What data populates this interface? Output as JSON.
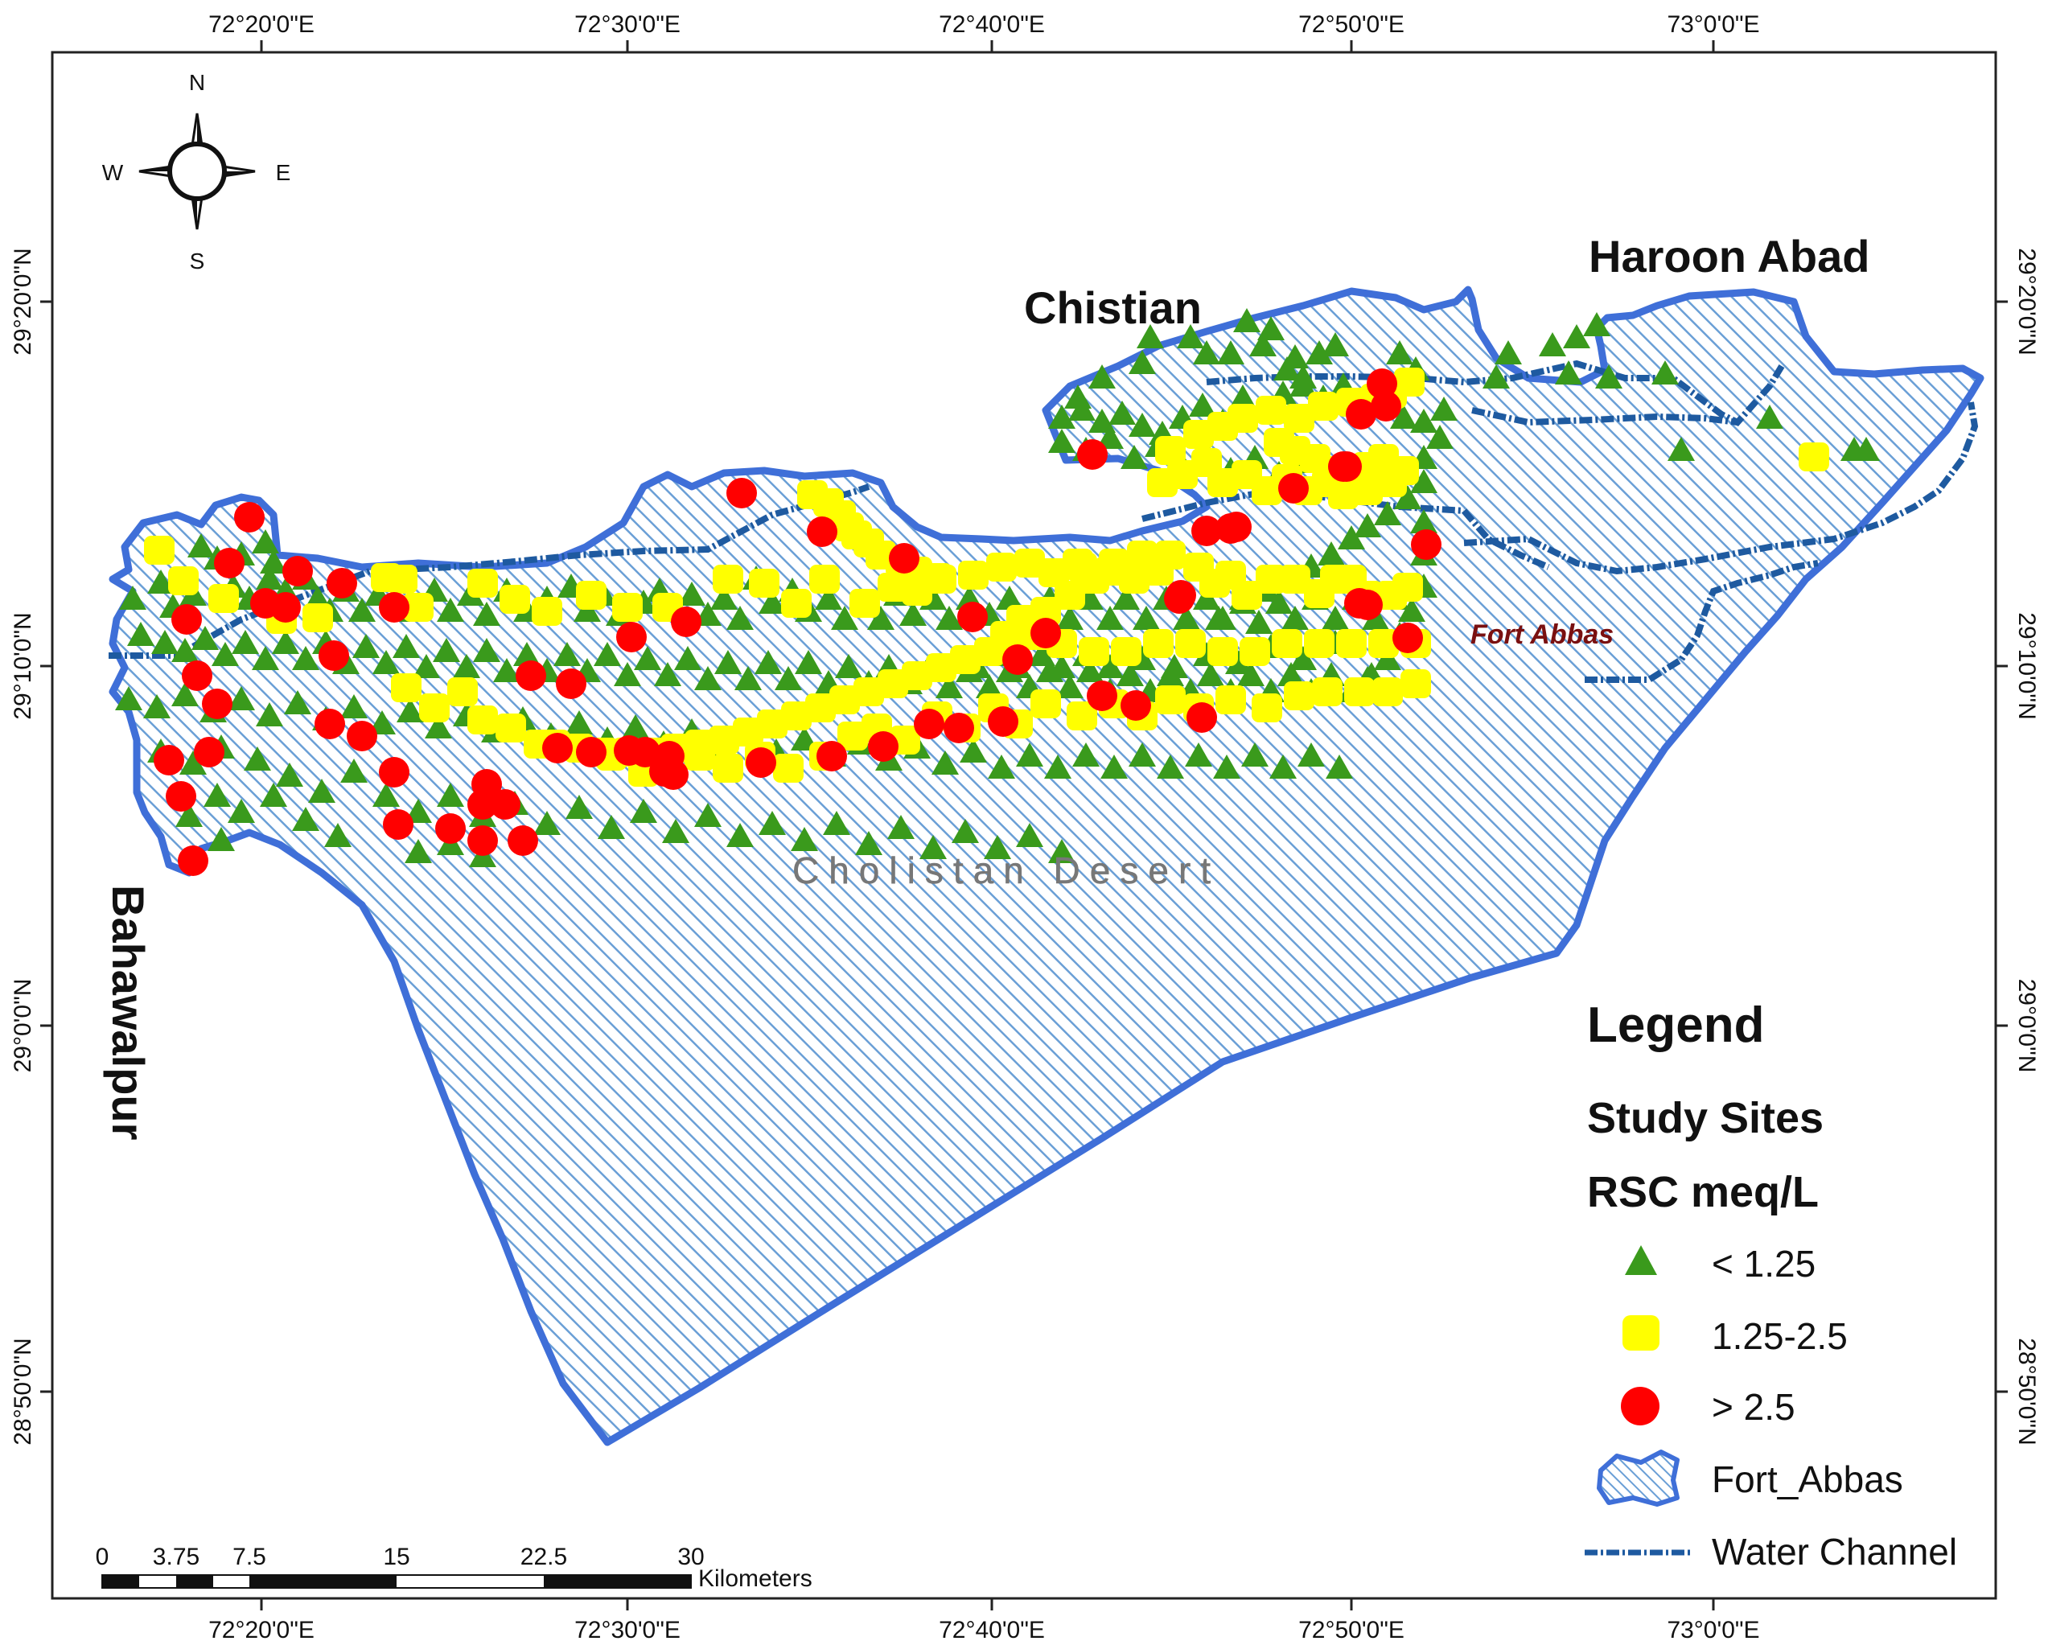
{
  "map": {
    "top_ticks": [
      "72°20'0\"E",
      "72°30'0\"E",
      "72°40'0\"E",
      "72°50'0\"E",
      "73°0'0\"E"
    ],
    "bottom_ticks": [
      "72°20'0\"E",
      "72°30'0\"E",
      "72°40'0\"E",
      "72°50'0\"E",
      "73°0'0\"E"
    ],
    "left_ticks": [
      "29°20'0\"N",
      "29°10'0\"N",
      "29°0'0\"N",
      "28°50'0\"N"
    ],
    "right_ticks": [
      "29°20'0\"N",
      "29°10'0\"N",
      "29°0'0\"N",
      "28°50'0\"N"
    ],
    "places": {
      "chistian": "Chistian",
      "haroon_abad": "Haroon Abad",
      "bahawalpur": "Bahawalpur",
      "fort_abbas": "Fort Abbas",
      "cholistan": "Cholistan Desert"
    },
    "compass": {
      "n": "N",
      "s": "S",
      "e": "E",
      "w": "W"
    },
    "scale": {
      "labels": [
        "0",
        "3.75",
        "7.5",
        "15",
        "22.5",
        "30"
      ],
      "unit": "Kilometers"
    }
  },
  "legend": {
    "title": "Legend",
    "subtitle": "Study Sites",
    "variable": "RSC meq/L",
    "items": [
      {
        "label": "< 1.25",
        "symbol": "triangle",
        "color": "#3a9a1c"
      },
      {
        "label": "1.25-2.5",
        "symbol": "square",
        "color": "#ffff00"
      },
      {
        "label": "> 2.5",
        "symbol": "circle",
        "color": "#ff0000"
      },
      {
        "label": "Fort_Abbas",
        "symbol": "polygon",
        "color": "#3f6fd8"
      },
      {
        "label": "Water Channel",
        "symbol": "line",
        "color": "#1e5aa0"
      }
    ]
  },
  "colors": {
    "boundary": "#3f6fd8",
    "hatch": "#6a9fd6",
    "channel": "#1e5aa0",
    "low": "#3a9a1c",
    "mid": "#ffff00",
    "high": "#ff0000",
    "fort_abbas_label": "#7a1010",
    "desert_label": "#777777"
  },
  "sites": {
    "low_count_note": "",
    "categories": [
      "< 1.25",
      "1.25-2.5",
      "> 2.5"
    ]
  }
}
